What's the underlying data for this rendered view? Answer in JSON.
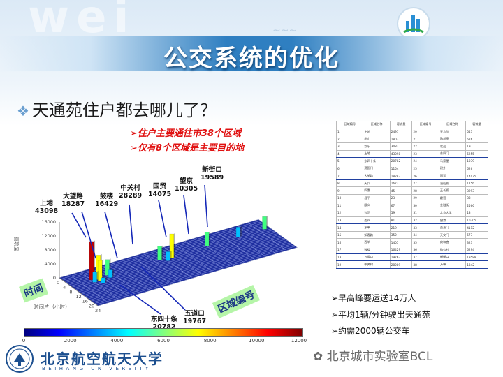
{
  "slide": {
    "title": "公交系统的优化",
    "subtitle_mark": "❖",
    "subtitle": "天通苑住户都去哪儿了？",
    "notes": [
      "➢住户主要通往市38个区域",
      "➢仅有8个区域是主要目的地"
    ],
    "background_ghost": "wei"
  },
  "chart_data": {
    "type": "bar3d",
    "zlim": [
      0,
      16000
    ],
    "z_ticks": [
      "16000",
      "12000",
      "8000",
      "4000",
      "0"
    ],
    "z_axis_label": "客流量",
    "x_axis_tag": "时间",
    "x_axis_label": "时间片（小时）",
    "x_ticks": [
      "0",
      "4",
      "8",
      "12",
      "16",
      "20",
      "24"
    ],
    "y_axis_tag": "区域编号",
    "colorbar_ticks": [
      "0",
      "2000",
      "4000",
      "6000",
      "8000",
      "10000",
      "12000"
    ],
    "annotations": [
      {
        "name": "上地",
        "value": 43098
      },
      {
        "name": "大望路",
        "value": 18287
      },
      {
        "name": "鼓楼",
        "value": 16429
      },
      {
        "name": "中关村",
        "value": 28289
      },
      {
        "name": "国贸",
        "value": 14075
      },
      {
        "name": "望京",
        "value": 10305
      },
      {
        "name": "新街口",
        "value": 19589
      },
      {
        "name": "东四十条",
        "value": 20782
      },
      {
        "name": "五道口",
        "value": 19767
      }
    ]
  },
  "table": {
    "headers": [
      "区域编号",
      "区域名称",
      "客流量",
      "区域编号",
      "区域名称",
      "客流量"
    ],
    "rows": [
      [
        "1",
        "上地",
        "2497",
        "20",
        "天宫院",
        "547"
      ],
      [
        "2",
        "老山",
        "1803",
        "21",
        "陶然亭",
        "626"
      ],
      [
        "3",
        "欢乐",
        "3482",
        "22",
        "欢迎",
        "19"
      ],
      [
        "4",
        "上地",
        "43098",
        "23",
        "东四门",
        "5255"
      ],
      [
        "5",
        "东四十条",
        "20782",
        "24",
        "马家堡",
        "1039"
      ],
      [
        "6",
        "建国门",
        "1154",
        "25",
        "建外",
        "626"
      ],
      [
        "7",
        "大望路",
        "18287",
        "26",
        "国贸",
        "14075"
      ],
      [
        "8",
        "天兵",
        "1672",
        "27",
        "酒仙桥",
        "1756"
      ],
      [
        "9",
        "四惠",
        "45",
        "28",
        "王长桥",
        "3993"
      ],
      [
        "10",
        "昌平",
        "23",
        "29",
        "霍营",
        "38"
      ],
      [
        "11",
        "顺义",
        "67",
        "30",
        "金融街",
        "2566"
      ],
      [
        "12",
        "沙河",
        "59",
        "31",
        "北京大学",
        "13"
      ],
      [
        "13",
        "西四",
        "81",
        "32",
        "望京",
        "10305"
      ],
      [
        "14",
        "东单",
        "219",
        "33",
        "西直门",
        "4112"
      ],
      [
        "15",
        "知春路",
        "352",
        "34",
        "天安门",
        "577"
      ],
      [
        "16",
        "西单",
        "1405",
        "35",
        "雍和宫",
        "323"
      ],
      [
        "17",
        "鼓楼",
        "16429",
        "36",
        "魏公村",
        "6294"
      ],
      [
        "18",
        "五道口",
        "19767",
        "37",
        "新街口",
        "19589"
      ],
      [
        "19",
        "中关村",
        "28289",
        "38",
        "万峰",
        "1342"
      ]
    ],
    "highlighted_rows": [
      3,
      4,
      6,
      12,
      16,
      17,
      18
    ]
  },
  "bullets": [
    "➢早高峰要运送14万人",
    "➢平均1辆/分钟驶出天通苑",
    "➢约需2000辆公交车"
  ],
  "footer": {
    "university_cn": "北京航空航天大学",
    "university_en": "BEIHANG UNIVERSITY",
    "watermark": "北京城市实验室BCL"
  },
  "colors": {
    "banner": "#2f7fc1",
    "note_red": "#e01010",
    "highlight": "#2040a0",
    "tag_green": "#b5f5a8"
  }
}
